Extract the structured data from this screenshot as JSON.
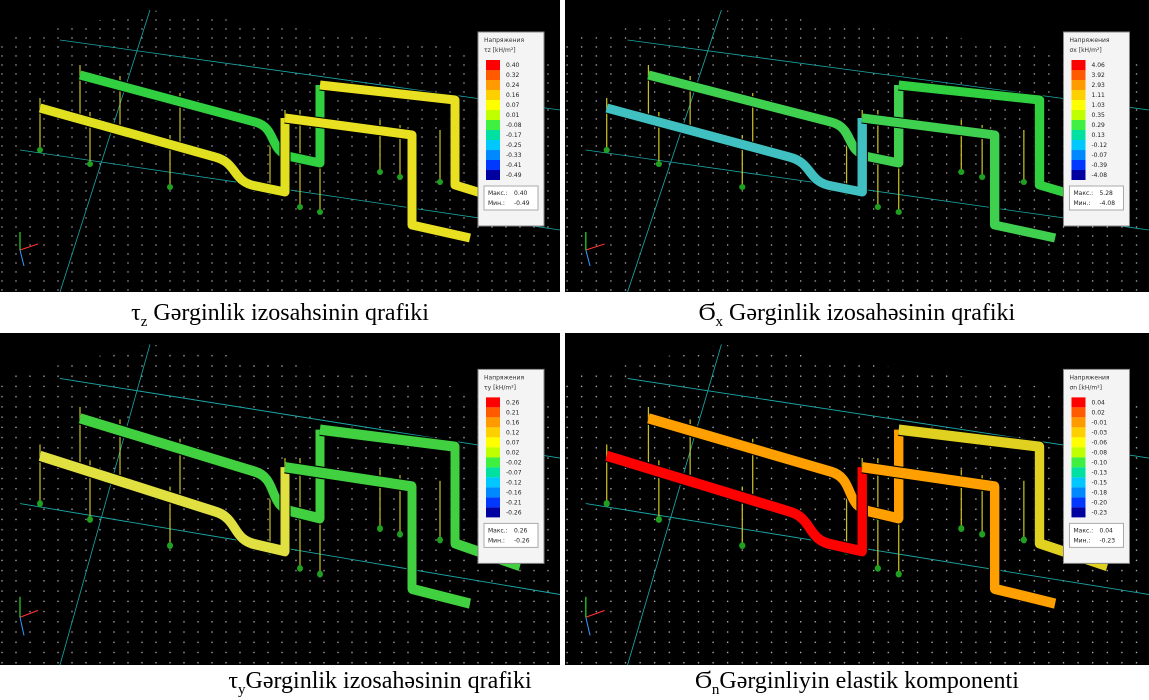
{
  "panels": [
    {
      "legend": {
        "title": "Напряжения",
        "unit": "τz [kH/m²]",
        "values": [
          "0.40",
          "0.32",
          "0.24",
          "0.16",
          "0.07",
          "0.01",
          "-0.08",
          "-0.17",
          "-0.25",
          "-0.33",
          "-0.41",
          "-0.49"
        ],
        "max_label": "Макс.:",
        "max": "0.40",
        "min_label": "Мин.:",
        "min": "-0.49"
      },
      "caption": {
        "symbol": "τ",
        "sub": "z",
        "text": " Gərginlik izosahsinin qrafiki"
      }
    },
    {
      "legend": {
        "title": "Напряжения",
        "unit": "σx [kH/m²]",
        "values": [
          "4.06",
          "3.92",
          "2.93",
          "1.11",
          "1.03",
          "0.35",
          "0.29",
          "0.13",
          "-0.12",
          "-0.07",
          "-0.39",
          "-4.08"
        ],
        "max_label": "Макс.:",
        "max": "5.28",
        "min_label": "Мин.:",
        "min": "-4.08"
      },
      "caption": {
        "symbol": "Ϭ",
        "sub": "x",
        "text": " Gərginlik izosahəsinin qrafiki"
      }
    },
    {
      "legend": {
        "title": "Напряжения",
        "unit": "τy [kH/m²]",
        "values": [
          "0.26",
          "0.21",
          "0.16",
          "0.12",
          "0.07",
          "0.02",
          "-0.02",
          "-0.07",
          "-0.12",
          "-0.16",
          "-0.21",
          "-0.26"
        ],
        "max_label": "Макс.:",
        "max": "0.26",
        "min_label": "Мин.:",
        "min": "-0.26"
      },
      "caption": {
        "symbol": "τ",
        "sub": "y",
        "text": "Gərginlik izosahəsinin qrafiki"
      }
    },
    {
      "legend": {
        "title": "Напряжения",
        "unit": "σn [kH/m²]",
        "values": [
          "0.04",
          "0.02",
          "-0.01",
          "-0.03",
          "-0.06",
          "-0.08",
          "-0.10",
          "-0.13",
          "-0.15",
          "-0.18",
          "-0.20",
          "-0.23"
        ],
        "max_label": "Макс.:",
        "max": "0.04",
        "min_label": "Мин.:",
        "min": "-0.23"
      },
      "caption": {
        "symbol": "Ϭ",
        "sub": "n",
        "text": "Gərginliyin elastik komponenti"
      }
    }
  ]
}
